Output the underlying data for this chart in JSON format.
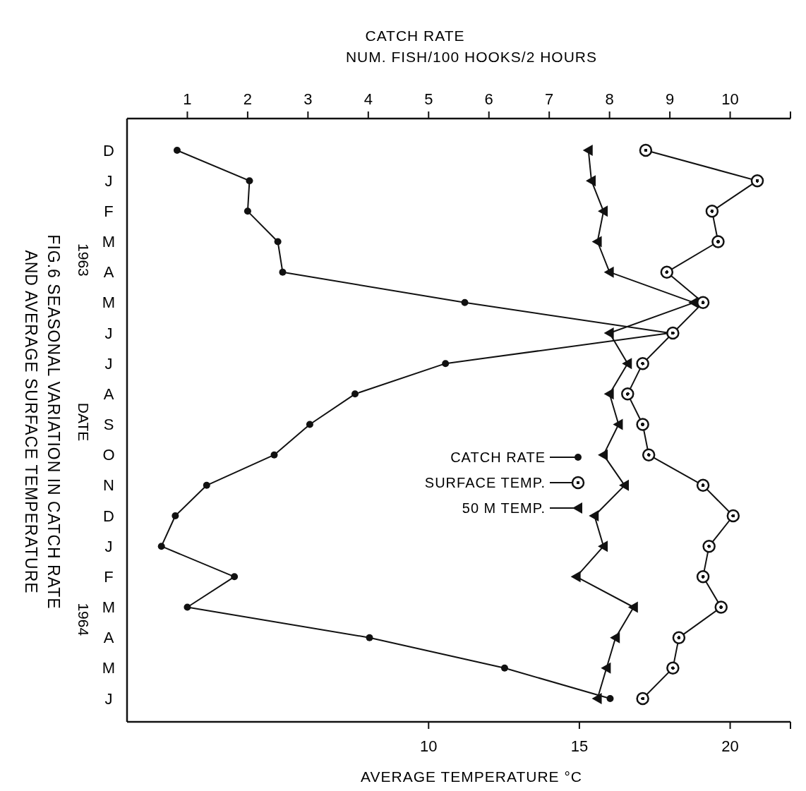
{
  "chart_data": {
    "type": "line",
    "orientation": "horizontal",
    "title": "FIG.6 SEASONAL VARIATION IN CATCH RATE\nAND AVERAGE SURFACE TEMPERATURE",
    "ylabel": "DATE",
    "x2label": "CATCH RATE\nNUM. FISH/100 HOOKS/2 HOURS",
    "xlabel": "AVERAGE TEMPERATURE °C",
    "categories": [
      "D",
      "J",
      "F",
      "M",
      "A",
      "M",
      "J",
      "J",
      "A",
      "S",
      "O",
      "N",
      "D",
      "J",
      "F",
      "M",
      "A",
      "M",
      "J"
    ],
    "series": [
      {
        "name": "CATCH RATE",
        "color": "#111111",
        "marker": "circle",
        "axis": "x2",
        "values": [
          0.83,
          2.03,
          2.0,
          2.5,
          2.58,
          5.6,
          9.0,
          5.28,
          3.78,
          3.03,
          2.44,
          1.32,
          0.8,
          0.57,
          1.78,
          1.0,
          4.02,
          6.26,
          8.01
        ]
      },
      {
        "name": "SURFACE TEMP.",
        "color": "#111111",
        "marker": "circle",
        "values": [
          17.2,
          20.9,
          19.4,
          19.6,
          17.9,
          19.1,
          18.1,
          17.1,
          16.6,
          17.1,
          17.3,
          19.1,
          20.1,
          19.3,
          19.1,
          19.7,
          18.3,
          18.1,
          17.1
        ]
      },
      {
        "name": "50 M TEMP.",
        "color": "#111111",
        "marker": "triangle",
        "values": [
          15.3,
          15.4,
          15.8,
          15.6,
          16.0,
          18.8,
          16.0,
          16.6,
          16.0,
          16.3,
          15.8,
          16.5,
          15.5,
          15.8,
          14.9,
          16.8,
          16.2,
          15.9,
          15.6
        ]
      }
    ],
    "x2lim": [
      0,
      11
    ],
    "x2ticks": [
      1,
      2,
      3,
      4,
      5,
      6,
      7,
      8,
      9,
      10,
      {
        "value": 11,
        "label": null
      }
    ],
    "xlim": [
      0,
      22
    ],
    "xticks": [
      10,
      15,
      20,
      {
        "value": 22,
        "label": null
      }
    ],
    "annotations": [
      "1963",
      "1964"
    ],
    "legend": "center",
    "grid": false,
    "line_style": "solid"
  }
}
